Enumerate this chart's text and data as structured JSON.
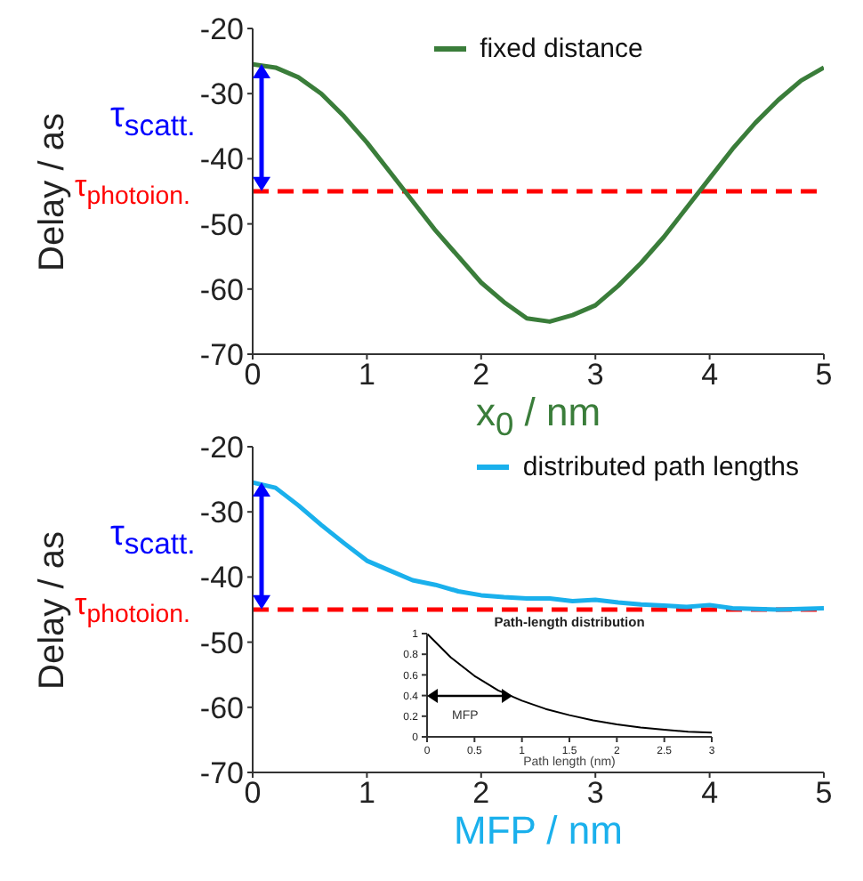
{
  "chart_data": [
    {
      "type": "line",
      "xlabel": "x$_{0}$ / nm",
      "ylabel": "Delay / as",
      "xlim": [
        0,
        5
      ],
      "ylim": [
        -70,
        -20
      ],
      "xticks": [
        0,
        1,
        2,
        3,
        4,
        5
      ],
      "yticks": [
        -70,
        -60,
        -50,
        -40,
        -30,
        -20
      ],
      "legend": "top",
      "x": [
        0,
        0.2,
        0.4,
        0.6,
        0.8,
        1.0,
        1.2,
        1.4,
        1.6,
        1.8,
        2.0,
        2.2,
        2.4,
        2.6,
        2.8,
        3.0,
        3.2,
        3.4,
        3.6,
        3.8,
        4.0,
        4.2,
        4.4,
        4.6,
        4.8,
        5.0
      ],
      "series": [
        {
          "name": "fixed distance",
          "color": "#3a7d3a",
          "values": [
            -25.5,
            -26,
            -27.5,
            -30,
            -33.5,
            -37.5,
            -42,
            -46.5,
            -51,
            -55,
            -59,
            -62,
            -64.5,
            -65,
            -64,
            -62.5,
            -59.5,
            -56,
            -52,
            -47.5,
            -43,
            -38.5,
            -34.5,
            -31,
            -28,
            -26
          ]
        }
      ],
      "ref_lines": [
        {
          "axis": "y",
          "value": -45,
          "label": "τ$_{photoion.}$",
          "color": "#ff0000",
          "line_style": "dashed"
        }
      ],
      "annotations": [
        "τ$_{scatt.}$"
      ]
    },
    {
      "type": "line",
      "xlabel": "MFP / nm",
      "ylabel": "Delay / as",
      "xlim": [
        0,
        5
      ],
      "ylim": [
        -70,
        -20
      ],
      "xticks": [
        0,
        1,
        2,
        3,
        4,
        5
      ],
      "yticks": [
        -70,
        -60,
        -50,
        -40,
        -30,
        -20
      ],
      "legend": "top right",
      "x": [
        0,
        0.2,
        0.4,
        0.6,
        0.8,
        1.0,
        1.2,
        1.4,
        1.6,
        1.8,
        2.0,
        2.2,
        2.4,
        2.6,
        2.8,
        3.0,
        3.2,
        3.4,
        3.6,
        3.8,
        4.0,
        4.2,
        4.4,
        4.6,
        4.8,
        5.0
      ],
      "series": [
        {
          "name": "distributed path lengths",
          "color": "#1ab0ec",
          "values": [
            -25.5,
            -26.3,
            -29,
            -32,
            -34.8,
            -37.5,
            -39,
            -40.5,
            -41.2,
            -42.2,
            -42.8,
            -43.1,
            -43.3,
            -43.3,
            -43.7,
            -43.5,
            -43.9,
            -44.2,
            -44.4,
            -44.6,
            -44.3,
            -44.8,
            -44.9,
            -45,
            -44.9,
            -44.8
          ]
        }
      ],
      "ref_lines": [
        {
          "axis": "y",
          "value": -45,
          "label": "τ$_{photoion.}$",
          "color": "#ff0000",
          "line_style": "dashed"
        }
      ],
      "annotations": [
        "τ$_{scatt.}$"
      ]
    },
    {
      "type": "line",
      "title": "Path-length distribution",
      "xlabel": "Path length (nm)",
      "xlim": [
        0,
        3
      ],
      "ylim": [
        0,
        1
      ],
      "xticks": [
        0,
        0.5,
        1,
        1.5,
        2,
        2.5,
        3
      ],
      "yticks": [
        0,
        0.2,
        0.4,
        0.6,
        0.8,
        1
      ],
      "x": [
        0,
        0.25,
        0.5,
        0.75,
        1,
        1.25,
        1.5,
        1.75,
        2,
        2.25,
        2.5,
        2.75,
        3
      ],
      "series": [
        {
          "color": "#000000",
          "values": [
            1,
            0.77,
            0.59,
            0.45,
            0.35,
            0.27,
            0.21,
            0.16,
            0.12,
            0.09,
            0.07,
            0.05,
            0.04
          ]
        }
      ],
      "annotations": [
        {
          "text": "MFP",
          "x": 0.9,
          "y": 0.4
        }
      ]
    }
  ]
}
